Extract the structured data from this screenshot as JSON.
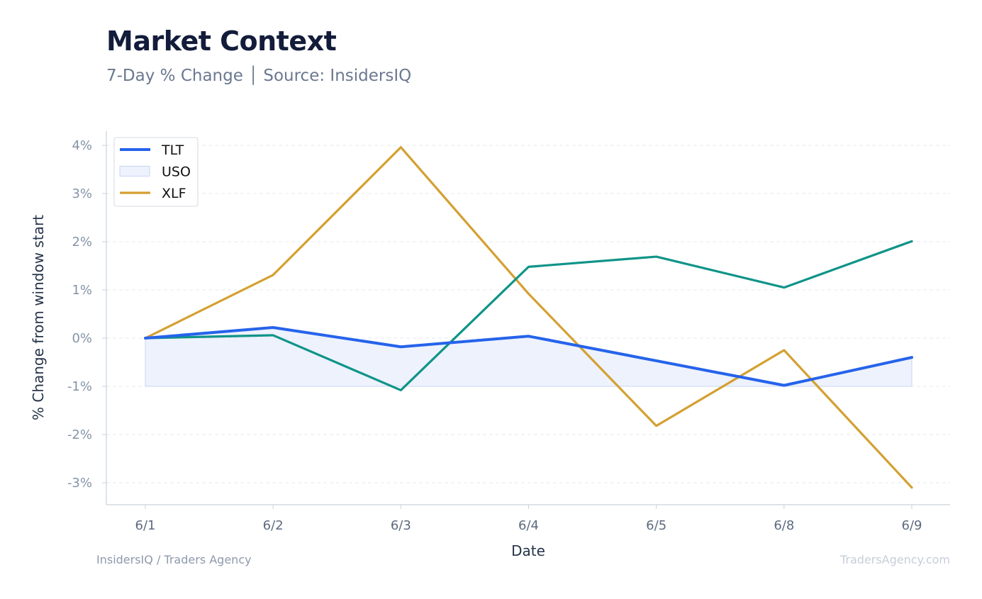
{
  "header": {
    "title": "Market Context",
    "subtitle": "7-Day % Change │ Source: InsidersIQ"
  },
  "footer": {
    "left": "InsidersIQ / Traders Agency",
    "right": "TradersAgency.com"
  },
  "chart_data": {
    "type": "line",
    "title": "Market Context",
    "subtitle": "7-Day % Change │ Source: InsidersIQ",
    "xlabel": "Date",
    "ylabel": "% Change from window start",
    "categories": [
      "6/1",
      "6/2",
      "6/3",
      "6/4",
      "6/5",
      "6/8",
      "6/9"
    ],
    "ylim": [
      -3.45,
      4.3
    ],
    "yticks": [
      -3,
      -2,
      -1,
      0,
      1,
      2,
      3,
      4
    ],
    "ytick_labels": [
      "-3%",
      "-2%",
      "-1%",
      "0%",
      "1%",
      "2%",
      "3%",
      "4%"
    ],
    "grid": true,
    "legend_position": "top-left",
    "series": [
      {
        "name": "TLT",
        "kind": "line",
        "color": "#2563eb",
        "values": [
          0.0,
          0.22,
          -0.18,
          0.04,
          -0.47,
          -0.98,
          -0.4
        ]
      },
      {
        "name": "USO",
        "kind": "band",
        "color": "#dbe5fb",
        "baseline": -1.0,
        "values": [
          0.0,
          0.22,
          -0.18,
          0.04,
          -0.47,
          -0.98,
          -0.4
        ]
      },
      {
        "name": "XLF",
        "kind": "line",
        "color": "#d4a031",
        "values": [
          0.0,
          1.31,
          3.96,
          0.92,
          -1.82,
          -0.25,
          -3.1
        ]
      },
      {
        "name": "",
        "kind": "line",
        "color": "#0f9488",
        "values": [
          0.0,
          0.06,
          -1.08,
          1.48,
          1.69,
          1.05,
          2.01
        ]
      }
    ]
  }
}
